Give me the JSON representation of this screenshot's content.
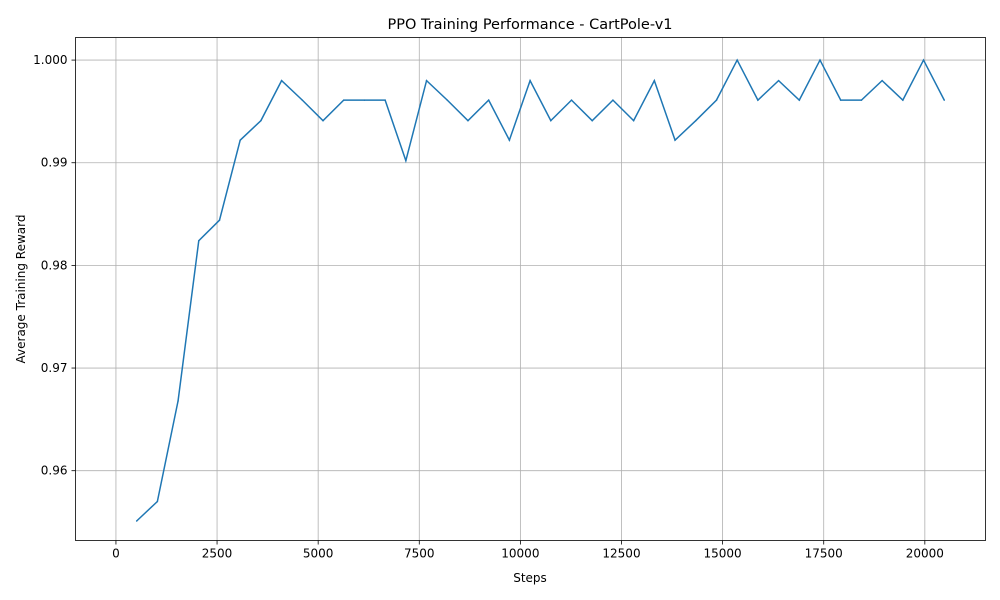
{
  "chart_data": {
    "type": "line",
    "title": "PPO Training Performance - CartPole-v1",
    "xlabel": "Steps",
    "ylabel": "Average Training Reward",
    "xlim": [
      -1000,
      21500
    ],
    "ylim": [
      0.9532,
      1.0022
    ],
    "xticks": [
      0,
      2500,
      5000,
      7500,
      10000,
      12500,
      15000,
      17500,
      20000
    ],
    "xtick_labels": [
      "0",
      "2500",
      "5000",
      "7500",
      "10000",
      "12500",
      "15000",
      "17500",
      "20000"
    ],
    "yticks": [
      0.96,
      0.97,
      0.98,
      0.99,
      1.0
    ],
    "ytick_labels": [
      "0.96",
      "0.97",
      "0.98",
      "0.99",
      "1.000"
    ],
    "grid": true,
    "line_color": "#1f77b4",
    "series": [
      {
        "x": [
          512,
          1024,
          1536,
          2048,
          2560,
          3072,
          3584,
          4096,
          4608,
          5120,
          5632,
          6144,
          6656,
          7168,
          7680,
          8192,
          8704,
          9216,
          9728,
          10240,
          10752,
          11264,
          11776,
          12288,
          12800,
          13312,
          13824,
          14336,
          14848,
          15360,
          15872,
          16384,
          16896,
          17408,
          17920,
          18432,
          18944,
          19456,
          19968,
          20480
        ],
        "y": [
          0.9551,
          0.957,
          0.9668,
          0.9824,
          0.9844,
          0.9922,
          0.9941,
          0.998,
          0.9961,
          0.9941,
          0.9961,
          0.9961,
          0.9961,
          0.9902,
          0.998,
          0.9961,
          0.9941,
          0.9961,
          0.9922,
          0.998,
          0.9941,
          0.9961,
          0.9941,
          0.9961,
          0.9941,
          0.998,
          0.9922,
          0.9941,
          0.9961,
          1.0,
          0.9961,
          0.998,
          0.9961,
          1.0,
          0.9961,
          0.9961,
          0.998,
          0.9961,
          1.0,
          0.9961
        ]
      }
    ]
  }
}
